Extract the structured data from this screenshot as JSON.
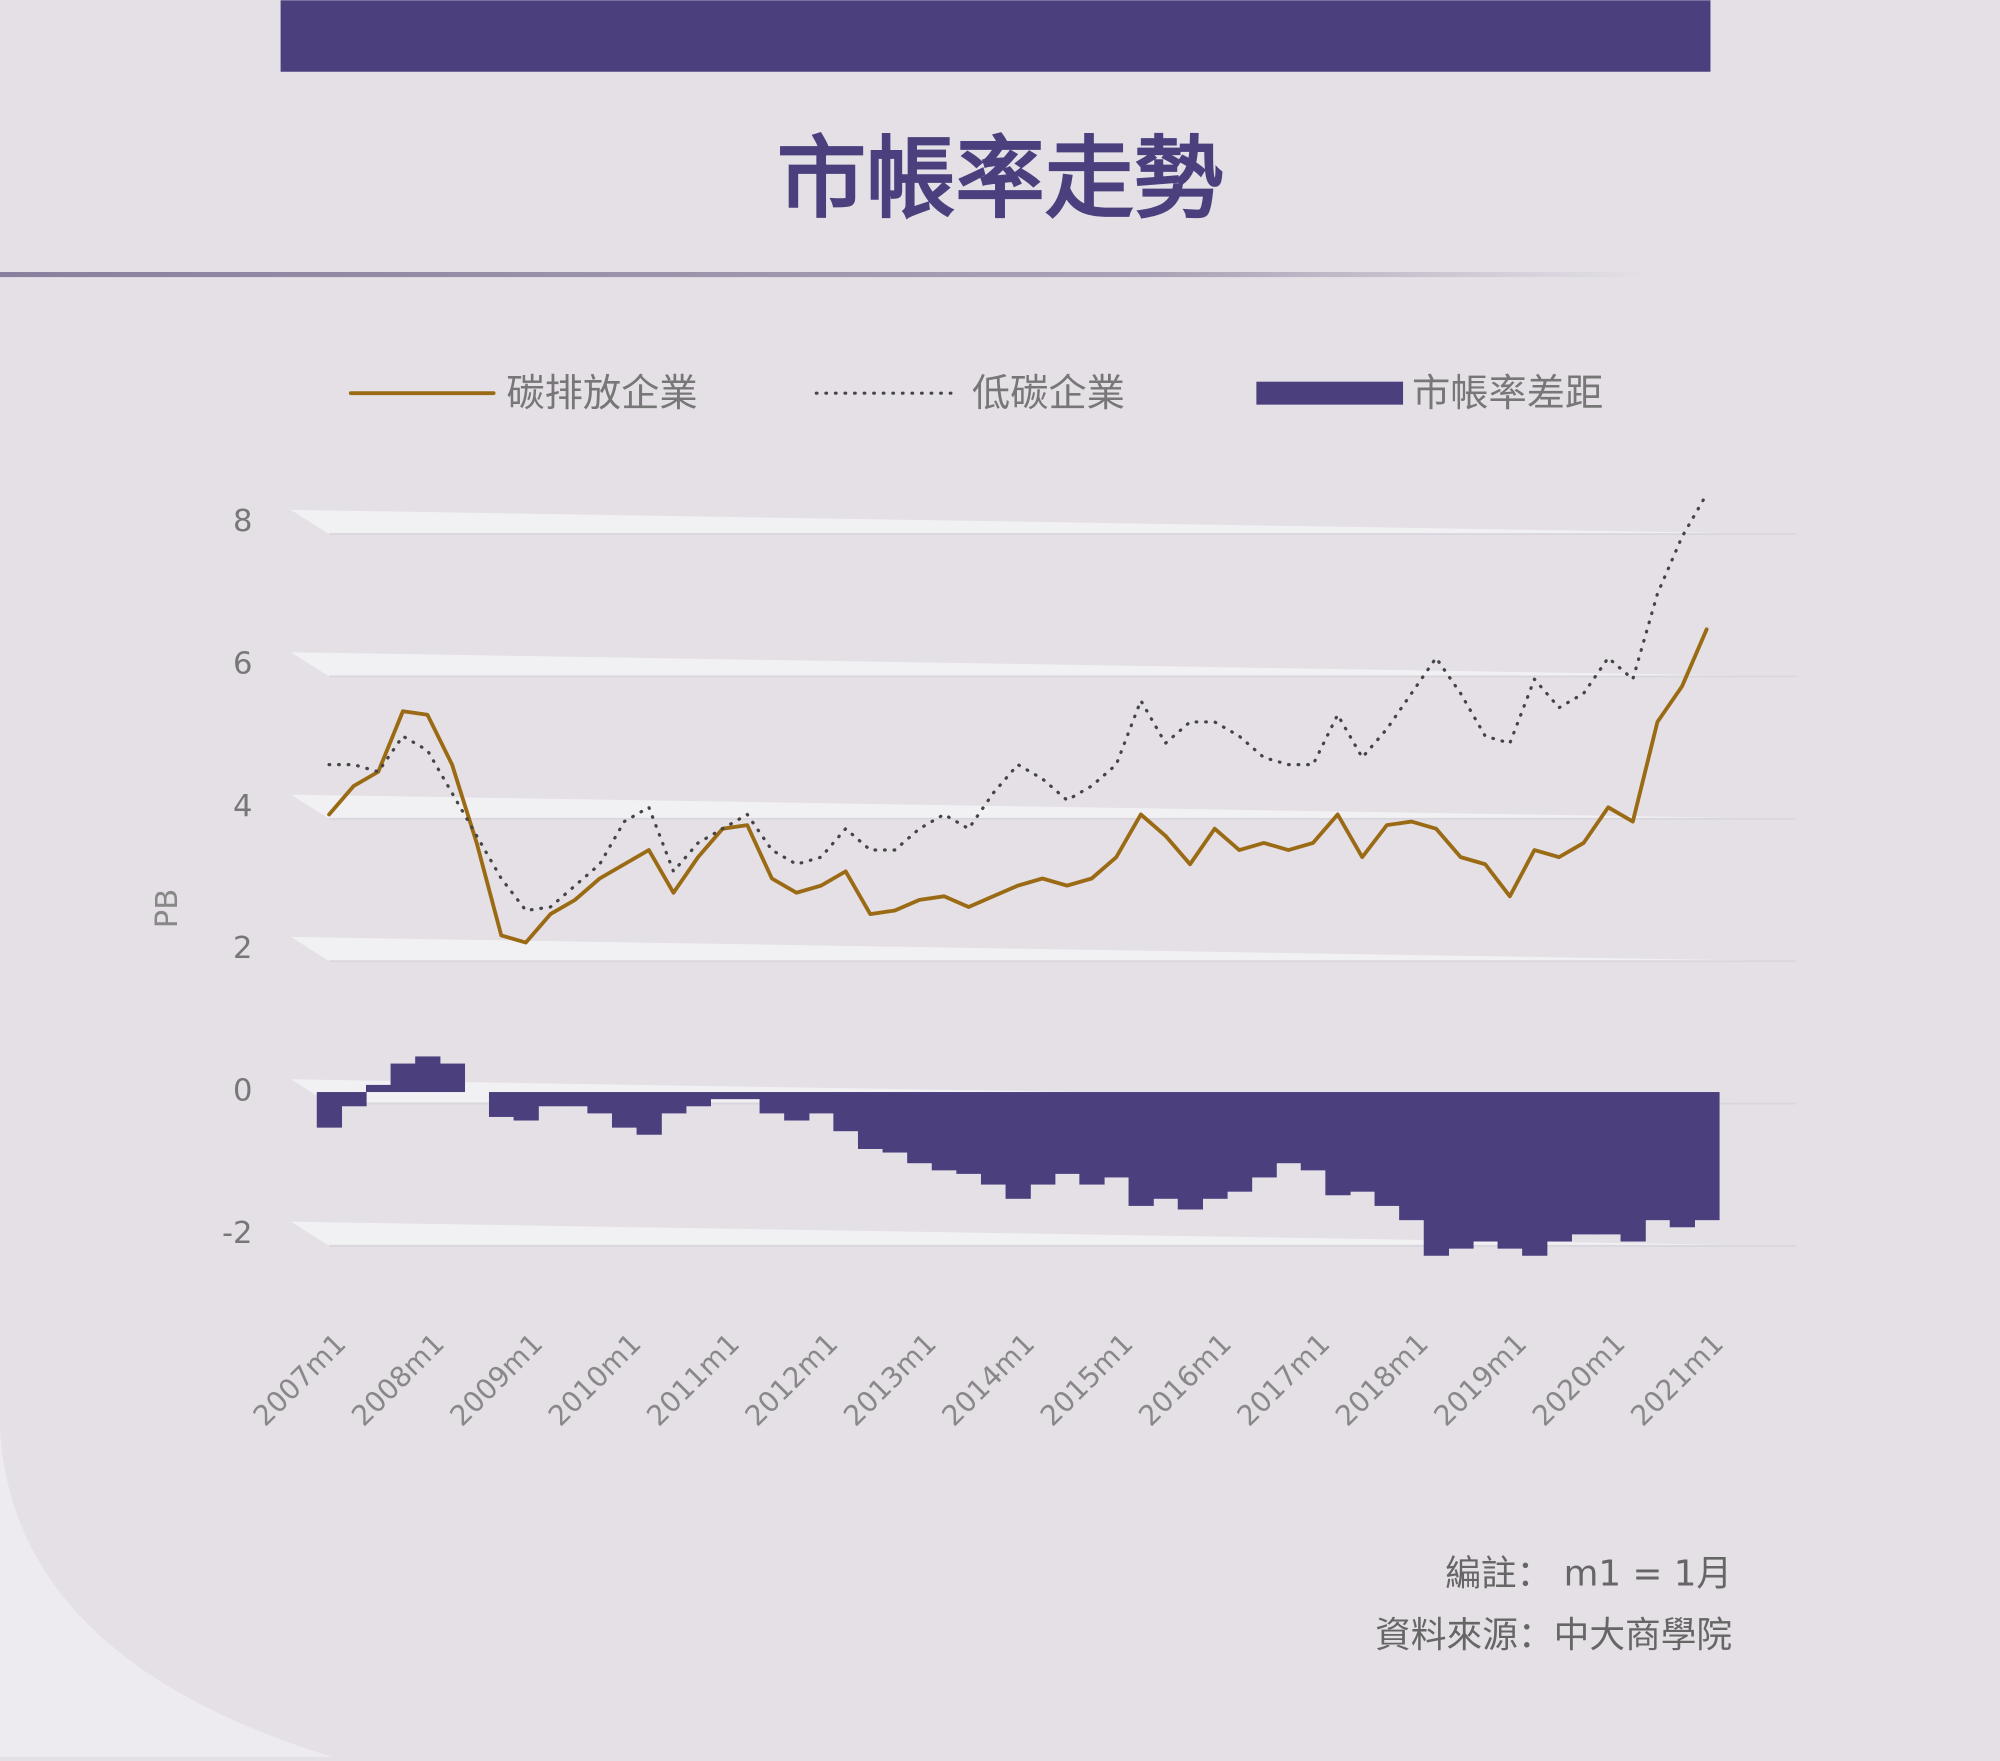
{
  "chart_data": {
    "type": "line",
    "title": "市帳率走勢",
    "y_label": "PB",
    "categories": [
      "2007m1",
      null,
      null,
      null,
      "2008m1",
      null,
      null,
      null,
      "2009m1",
      null,
      null,
      null,
      "2010m1",
      null,
      null,
      null,
      "2011m1",
      null,
      null,
      null,
      "2012m1",
      null,
      null,
      null,
      "2013m1",
      null,
      null,
      null,
      "2014m1",
      null,
      null,
      null,
      "2015m1",
      null,
      null,
      null,
      "2016m1",
      null,
      null,
      null,
      "2017m1",
      null,
      null,
      null,
      "2018m1",
      null,
      null,
      null,
      "2019m1",
      null,
      null,
      null,
      "2020m1",
      null,
      null,
      null,
      "2021m1"
    ],
    "series": [
      {
        "name": "碳排放企業",
        "type": "line",
        "color": "#9a6b14",
        "values": [
          3.9,
          4.3,
          4.5,
          5.35,
          5.3,
          4.6,
          3.5,
          2.2,
          2.1,
          2.5,
          2.7,
          3.0,
          3.2,
          3.4,
          2.8,
          3.3,
          3.7,
          3.75,
          3.0,
          2.8,
          2.9,
          3.1,
          2.5,
          2.55,
          2.7,
          2.75,
          2.6,
          2.75,
          2.9,
          3.0,
          2.9,
          3.0,
          3.3,
          3.9,
          3.6,
          3.2,
          3.7,
          3.4,
          3.5,
          3.4,
          3.5,
          3.9,
          3.3,
          3.75,
          3.8,
          3.7,
          3.3,
          3.2,
          2.75,
          3.4,
          3.3,
          3.5,
          4.0,
          3.8,
          5.2,
          5.7,
          6.5
        ]
      },
      {
        "name": "低碳企業",
        "type": "dotted",
        "color": "#444444",
        "values": [
          4.6,
          4.6,
          4.5,
          5.0,
          4.8,
          4.2,
          3.6,
          3.0,
          2.55,
          2.6,
          2.9,
          3.2,
          3.8,
          4.0,
          3.1,
          3.5,
          3.7,
          3.9,
          3.4,
          3.2,
          3.3,
          3.7,
          3.4,
          3.4,
          3.7,
          3.9,
          3.7,
          4.2,
          4.6,
          4.4,
          4.1,
          4.3,
          4.6,
          5.5,
          4.9,
          5.2,
          5.2,
          5.0,
          4.7,
          4.6,
          4.6,
          5.3,
          4.7,
          5.1,
          5.6,
          6.1,
          5.6,
          5.0,
          4.9,
          5.8,
          5.4,
          5.6,
          6.1,
          5.8,
          7.0,
          7.8,
          8.4
        ]
      },
      {
        "name": "市帳率差距",
        "type": "bar",
        "color": "#4b3f7e",
        "values": [
          -0.5,
          -0.2,
          0.1,
          0.4,
          0.5,
          0.4,
          0.0,
          -0.35,
          -0.4,
          -0.2,
          -0.2,
          -0.3,
          -0.5,
          -0.6,
          -0.3,
          -0.2,
          -0.1,
          -0.1,
          -0.3,
          -0.4,
          -0.3,
          -0.55,
          -0.8,
          -0.85,
          -1.0,
          -1.1,
          -1.15,
          -1.3,
          -1.5,
          -1.3,
          -1.15,
          -1.3,
          -1.2,
          -1.6,
          -1.5,
          -1.65,
          -1.5,
          -1.4,
          -1.2,
          -1.0,
          -1.1,
          -1.45,
          -1.4,
          -1.6,
          -1.8,
          -2.3,
          -2.2,
          -2.1,
          -2.2,
          -2.3,
          -2.1,
          -2.0,
          -2.0,
          -2.1,
          -1.8,
          -1.9,
          -1.8
        ]
      }
    ],
    "ylim": [
      -2.6,
      8.6
    ],
    "yticks": [
      -2,
      0,
      2,
      4,
      6,
      8
    ],
    "grid": true,
    "legend": "top",
    "notes": [
      "編註：  m1 = 1月",
      "資料來源：中大商學院"
    ]
  }
}
